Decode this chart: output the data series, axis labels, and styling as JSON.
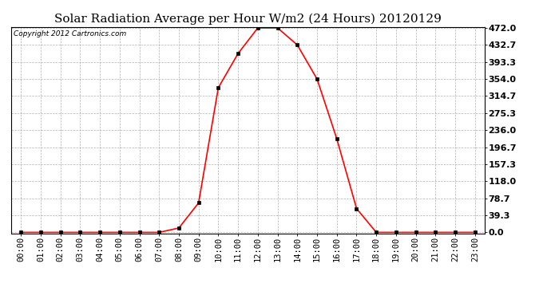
{
  "title": "Solar Radiation Average per Hour W/m2 (24 Hours) 20120129",
  "copyright_text": "Copyright 2012 Cartronics.com",
  "hours": [
    "00:00",
    "01:00",
    "02:00",
    "03:00",
    "04:00",
    "05:00",
    "06:00",
    "07:00",
    "08:00",
    "09:00",
    "10:00",
    "11:00",
    "12:00",
    "13:00",
    "14:00",
    "15:00",
    "16:00",
    "17:00",
    "18:00",
    "19:00",
    "20:00",
    "21:00",
    "22:00",
    "23:00"
  ],
  "values": [
    0.0,
    0.0,
    0.0,
    0.0,
    0.0,
    0.0,
    0.0,
    0.0,
    10.0,
    68.0,
    334.0,
    413.0,
    472.0,
    472.0,
    432.7,
    354.0,
    216.0,
    55.0,
    0.0,
    0.0,
    0.0,
    0.0,
    0.0,
    0.0
  ],
  "yticks": [
    0.0,
    39.3,
    78.7,
    118.0,
    157.3,
    196.7,
    236.0,
    275.3,
    314.7,
    354.0,
    393.3,
    432.7,
    472.0
  ],
  "ymax": 472.0,
  "line_color": "red",
  "marker_color": "black",
  "bg_color": "white",
  "plot_bg_color": "white",
  "grid_color": "#aaaaaa",
  "title_fontsize": 11,
  "copyright_fontsize": 6.5,
  "tick_fontsize": 7.5,
  "ytick_fontsize": 8,
  "figwidth": 6.9,
  "figheight": 3.75,
  "dpi": 100
}
